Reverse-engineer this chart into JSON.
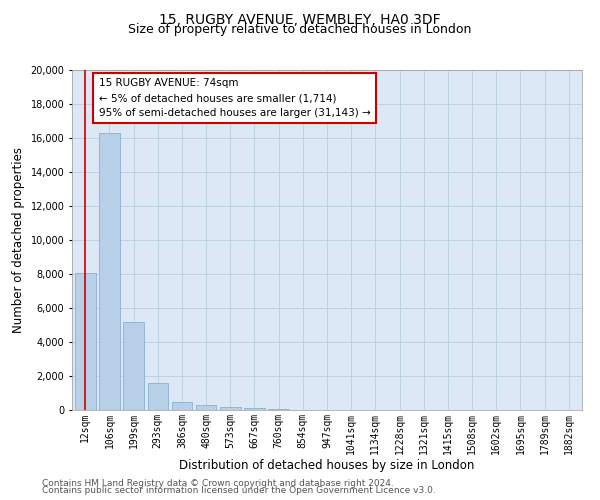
{
  "title1": "15, RUGBY AVENUE, WEMBLEY, HA0 3DF",
  "title2": "Size of property relative to detached houses in London",
  "xlabel": "Distribution of detached houses by size in London",
  "ylabel": "Number of detached properties",
  "bar_categories": [
    "12sqm",
    "106sqm",
    "199sqm",
    "293sqm",
    "386sqm",
    "480sqm",
    "573sqm",
    "667sqm",
    "760sqm",
    "854sqm",
    "947sqm",
    "1041sqm",
    "1134sqm",
    "1228sqm",
    "1321sqm",
    "1415sqm",
    "1508sqm",
    "1602sqm",
    "1695sqm",
    "1789sqm",
    "1882sqm"
  ],
  "bar_values": [
    8050,
    16300,
    5150,
    1600,
    500,
    290,
    180,
    110,
    65,
    0,
    0,
    0,
    0,
    0,
    0,
    0,
    0,
    0,
    0,
    0,
    0
  ],
  "bar_color": "#b8cfe8",
  "bar_edgecolor": "#7aaad0",
  "ylim": [
    0,
    20000
  ],
  "yticks": [
    0,
    2000,
    4000,
    6000,
    8000,
    10000,
    12000,
    14000,
    16000,
    18000,
    20000
  ],
  "annotation_title": "15 RUGBY AVENUE: 74sqm",
  "annotation_line1": "← 5% of detached houses are smaller (1,714)",
  "annotation_line2": "95% of semi-detached houses are larger (31,143) →",
  "annotation_box_color": "#ffffff",
  "annotation_border_color": "#cc0000",
  "red_line_color": "#cc0000",
  "footer1": "Contains HM Land Registry data © Crown copyright and database right 2024.",
  "footer2": "Contains public sector information licensed under the Open Government Licence v3.0.",
  "bg_color": "#ffffff",
  "plot_bg_color": "#dce8f5",
  "grid_color": "#b8cfe0",
  "title1_fontsize": 10,
  "title2_fontsize": 9,
  "axis_label_fontsize": 8.5,
  "tick_fontsize": 7,
  "annotation_fontsize": 7.5,
  "footer_fontsize": 6.5
}
